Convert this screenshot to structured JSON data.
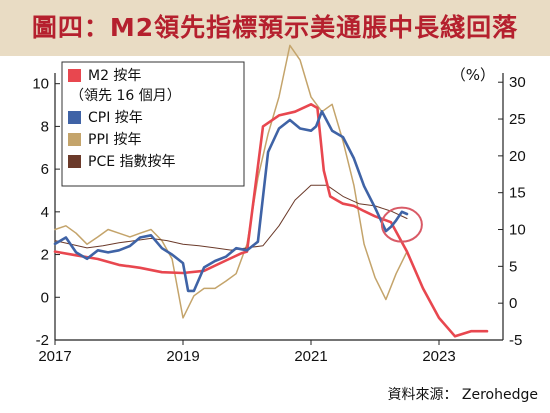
{
  "header": {
    "title": "圖四：M2領先指標預示美通脹中長綫回落"
  },
  "source": "資料來源： Zerohedge",
  "chart_data": {
    "type": "line",
    "title": "圖四：M2領先指標預示美通脹中長綫回落",
    "xlim": [
      2017,
      2024
    ],
    "x_ticks": [
      "2017",
      "2019",
      "2021",
      "2023"
    ],
    "left_axis": {
      "ylim": [
        -2,
        10.5
      ],
      "ticks": [
        "-2",
        "0",
        "2",
        "4",
        "6",
        "8",
        "10"
      ]
    },
    "right_axis": {
      "label": "（%）",
      "ylim": [
        -5,
        31.25
      ],
      "ticks": [
        "-5",
        "0",
        "5",
        "10",
        "15",
        "20",
        "25",
        "30"
      ]
    },
    "legend": {
      "placement": "top-left",
      "entries": [
        {
          "name": "M2 按年",
          "sub": "（領先 16 個月）",
          "color": "#e8474f"
        },
        {
          "name": "CPI 按年",
          "color": "#3f63a6"
        },
        {
          "name": "PPI 按年",
          "color": "#c4a46b"
        },
        {
          "name": "PCE 指數按年",
          "color": "#6b3a2a"
        }
      ]
    },
    "annotation": {
      "type": "circle",
      "x": 2022.42,
      "y_left": 3.4,
      "color": "#d95a66"
    },
    "series": [
      {
        "name": "M2 按年",
        "axis": "right",
        "color": "#e8474f",
        "width": 2.6,
        "x": [
          2017,
          2017.33,
          2017.67,
          2018,
          2018.33,
          2018.67,
          2019,
          2019.33,
          2019.67,
          2019.92,
          2020.0,
          2020.25,
          2020.5,
          2020.75,
          2021.0,
          2021.1,
          2021.2,
          2021.3,
          2021.4,
          2021.5,
          2021.67,
          2021.83,
          2022.0,
          2022.25,
          2022.5,
          2022.75,
          2023.0,
          2023.25,
          2023.5,
          2023.75
        ],
        "y": [
          7,
          6.5,
          6,
          5.2,
          4.8,
          4.2,
          4.1,
          4.4,
          5.8,
          6.8,
          7,
          24,
          25.5,
          26,
          27,
          26.5,
          18,
          14.5,
          14,
          13.5,
          13.2,
          12.5,
          11.8,
          11,
          7,
          2,
          -2,
          -4.5,
          -3.8,
          -3.8
        ]
      },
      {
        "name": "CPI 按年",
        "axis": "left",
        "color": "#3f63a6",
        "width": 2.6,
        "x": [
          2017,
          2017.17,
          2017.33,
          2017.5,
          2017.67,
          2017.83,
          2018,
          2018.17,
          2018.33,
          2018.5,
          2018.67,
          2018.83,
          2019,
          2019.08,
          2019.17,
          2019.33,
          2019.5,
          2019.67,
          2019.83,
          2020,
          2020.17,
          2020.33,
          2020.5,
          2020.67,
          2020.83,
          2021,
          2021.08,
          2021.17,
          2021.33,
          2021.5,
          2021.67,
          2021.83,
          2022,
          2022.17,
          2022.25,
          2022.33,
          2022.42,
          2022.5
        ],
        "y": [
          2.5,
          2.8,
          2.1,
          1.8,
          2.2,
          2.1,
          2.2,
          2.4,
          2.8,
          2.9,
          2.3,
          2.0,
          1.6,
          0.3,
          0.3,
          1.4,
          1.7,
          1.9,
          2.3,
          2.2,
          2.6,
          6.8,
          7.9,
          8.3,
          7.9,
          7.8,
          8.0,
          8.7,
          7.8,
          7.5,
          6.5,
          5.2,
          4.2,
          3.1,
          3.3,
          3.6,
          4.0,
          3.9
        ]
      },
      {
        "name": "PPI 按年",
        "axis": "right",
        "color": "#c4a46b",
        "width": 1.5,
        "x": [
          2017,
          2017.17,
          2017.33,
          2017.5,
          2017.67,
          2017.83,
          2018,
          2018.17,
          2018.33,
          2018.5,
          2018.67,
          2018.83,
          2019,
          2019.17,
          2019.33,
          2019.5,
          2019.67,
          2019.83,
          2020,
          2020.17,
          2020.33,
          2020.5,
          2020.67,
          2020.83,
          2021,
          2021.17,
          2021.33,
          2021.5,
          2021.67,
          2021.83,
          2022,
          2022.17,
          2022.33,
          2022.5
        ],
        "y": [
          10,
          10.5,
          9.5,
          8,
          9,
          10,
          9.5,
          9,
          9.5,
          10,
          8.5,
          6,
          -2,
          1,
          2,
          2,
          3,
          4,
          8,
          17,
          23,
          28,
          35,
          33,
          28,
          26,
          27,
          22,
          16,
          8,
          3.5,
          0.5,
          4,
          7
        ]
      },
      {
        "name": "PCE 指數按年",
        "axis": "right",
        "color": "#6b3a2a",
        "width": 1.0,
        "x": [
          2017,
          2017.25,
          2017.5,
          2017.75,
          2018,
          2018.25,
          2018.5,
          2018.75,
          2019,
          2019.25,
          2019.5,
          2019.75,
          2020,
          2020.25,
          2020.5,
          2020.75,
          2021,
          2021.25,
          2021.5,
          2021.75,
          2022,
          2022.25,
          2022.5
        ],
        "y": [
          8.5,
          8,
          7.5,
          7.8,
          8.2,
          8.5,
          8.8,
          8.5,
          8,
          7.8,
          7.5,
          7.2,
          7.5,
          7.8,
          10.5,
          14,
          16,
          16,
          14.5,
          13.5,
          13.2,
          12.5,
          11.5
        ]
      }
    ]
  }
}
